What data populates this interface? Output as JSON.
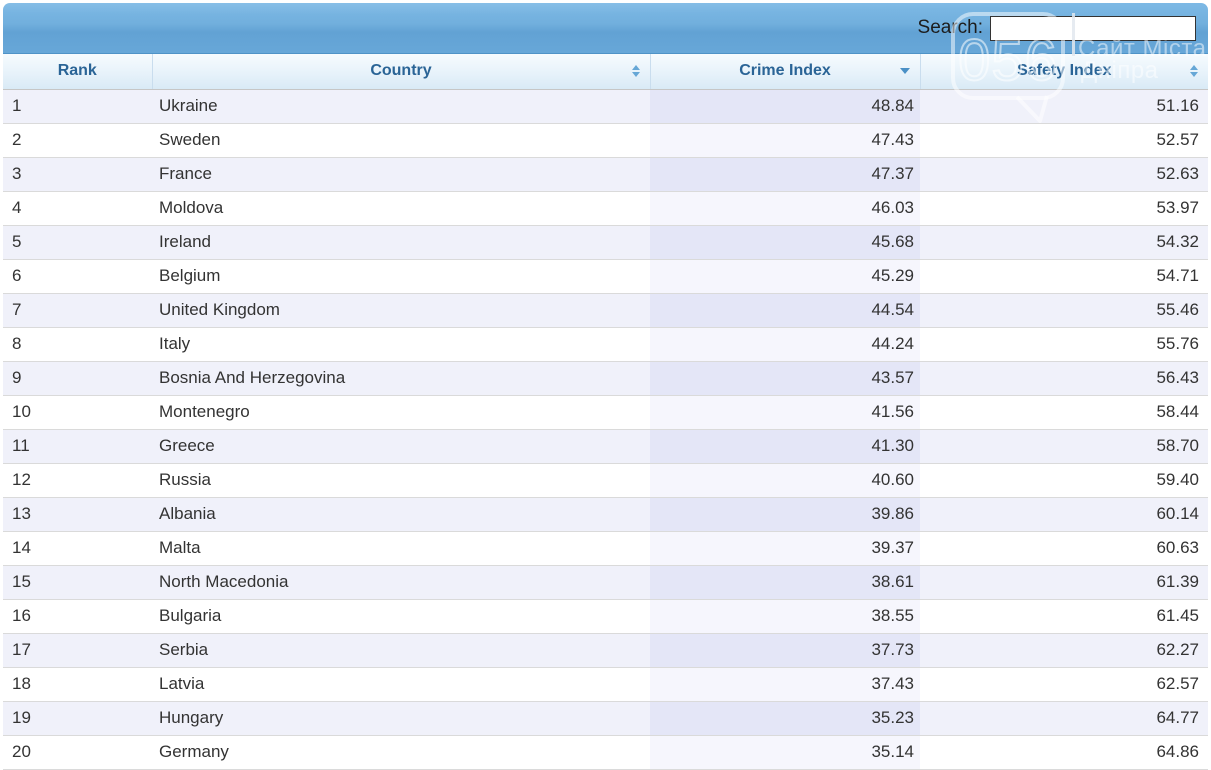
{
  "search": {
    "label": "Search:",
    "value": ""
  },
  "watermark": {
    "logo_number": "056",
    "site_line1": "Сайт Міста",
    "site_line2": "Дніпра"
  },
  "table": {
    "columns": [
      {
        "id": "rank",
        "label": "Rank",
        "sort": "none"
      },
      {
        "id": "country",
        "label": "Country",
        "sort": "unsorted"
      },
      {
        "id": "crime_index",
        "label": "Crime Index",
        "sort": "desc"
      },
      {
        "id": "safety_index",
        "label": "Safety Index",
        "sort": "unsorted"
      }
    ],
    "rows": [
      {
        "rank": "1",
        "country": "Ukraine",
        "crime_index": "48.84",
        "safety_index": "51.16"
      },
      {
        "rank": "2",
        "country": "Sweden",
        "crime_index": "47.43",
        "safety_index": "52.57"
      },
      {
        "rank": "3",
        "country": "France",
        "crime_index": "47.37",
        "safety_index": "52.63"
      },
      {
        "rank": "4",
        "country": "Moldova",
        "crime_index": "46.03",
        "safety_index": "53.97"
      },
      {
        "rank": "5",
        "country": "Ireland",
        "crime_index": "45.68",
        "safety_index": "54.32"
      },
      {
        "rank": "6",
        "country": "Belgium",
        "crime_index": "45.29",
        "safety_index": "54.71"
      },
      {
        "rank": "7",
        "country": "United Kingdom",
        "crime_index": "44.54",
        "safety_index": "55.46"
      },
      {
        "rank": "8",
        "country": "Italy",
        "crime_index": "44.24",
        "safety_index": "55.76"
      },
      {
        "rank": "9",
        "country": "Bosnia And Herzegovina",
        "crime_index": "43.57",
        "safety_index": "56.43"
      },
      {
        "rank": "10",
        "country": "Montenegro",
        "crime_index": "41.56",
        "safety_index": "58.44"
      },
      {
        "rank": "11",
        "country": "Greece",
        "crime_index": "41.30",
        "safety_index": "58.70"
      },
      {
        "rank": "12",
        "country": "Russia",
        "crime_index": "40.60",
        "safety_index": "59.40"
      },
      {
        "rank": "13",
        "country": "Albania",
        "crime_index": "39.86",
        "safety_index": "60.14"
      },
      {
        "rank": "14",
        "country": "Malta",
        "crime_index": "39.37",
        "safety_index": "60.63"
      },
      {
        "rank": "15",
        "country": "North Macedonia",
        "crime_index": "38.61",
        "safety_index": "61.39"
      },
      {
        "rank": "16",
        "country": "Bulgaria",
        "crime_index": "38.55",
        "safety_index": "61.45"
      },
      {
        "rank": "17",
        "country": "Serbia",
        "crime_index": "37.73",
        "safety_index": "62.27"
      },
      {
        "rank": "18",
        "country": "Latvia",
        "crime_index": "37.43",
        "safety_index": "62.57"
      },
      {
        "rank": "19",
        "country": "Hungary",
        "crime_index": "35.23",
        "safety_index": "64.77"
      },
      {
        "rank": "20",
        "country": "Germany",
        "crime_index": "35.14",
        "safety_index": "64.86"
      }
    ]
  },
  "colors": {
    "topbar_top": "#7db9e5",
    "topbar_bottom": "#62a2d4",
    "header_text": "#2a6496",
    "sort_icon": "#66a7d6",
    "sorted_desc_icon": "#4a90c6",
    "row_odd": "#f0f1fa",
    "row_even": "#ffffff",
    "sorted_col_odd": "#e4e6f7",
    "sorted_col_even": "#f6f6fd"
  }
}
